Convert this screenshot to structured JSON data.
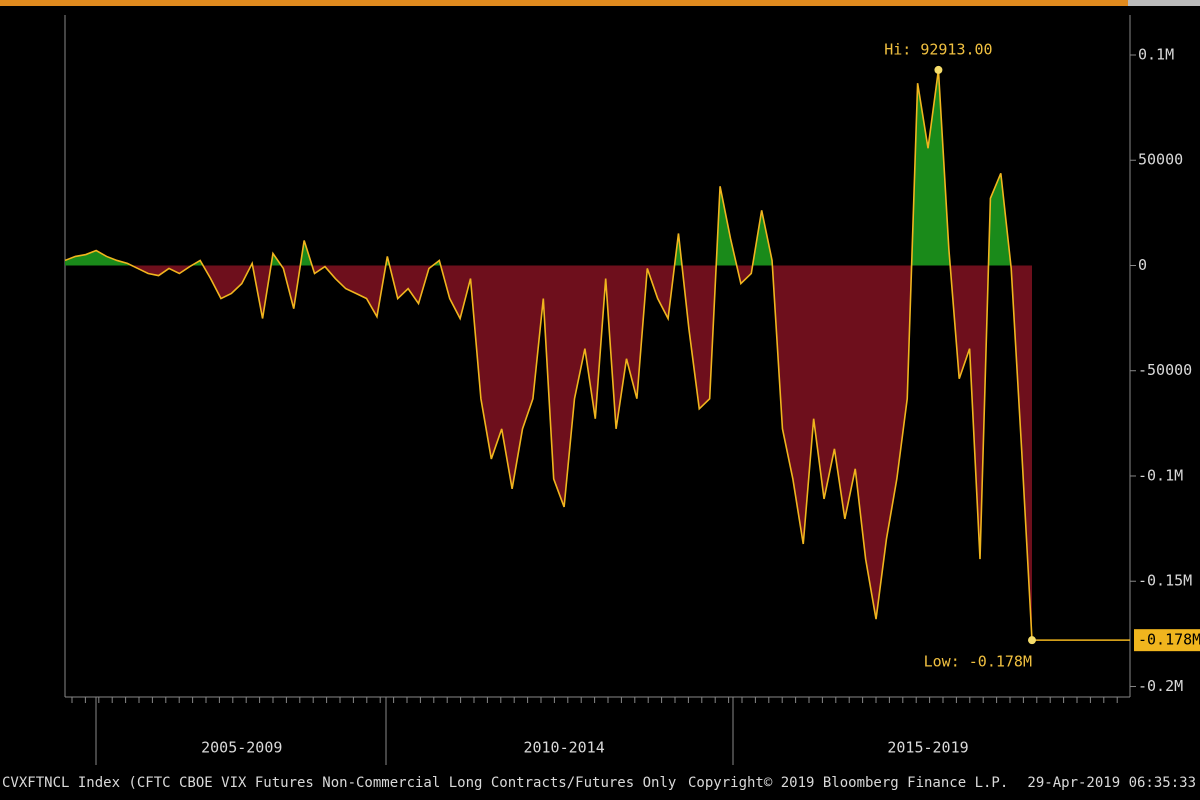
{
  "chart_data": {
    "type": "area",
    "hi_label": "Hi: 92913.00",
    "low_label": "Low: -0.178M",
    "last_value_label": "-0.178M",
    "footer_left": "CVXFTNCL Index (CFTC CBOE VIX Futures Non-Commercial Long Contracts/Futures Only",
    "footer_center": "Copyright© 2019 Bloomberg Finance L.P.",
    "footer_right": "29-Apr-2019 06:35:33",
    "categories": [
      null,
      null,
      null,
      null,
      null,
      null,
      null,
      null,
      null,
      null,
      null,
      null,
      null,
      null,
      null,
      null,
      null,
      "2005-2009",
      null,
      null,
      null,
      null,
      null,
      null,
      null,
      null,
      null,
      null,
      null,
      null,
      null,
      null,
      null,
      null,
      null,
      null,
      null,
      null,
      null,
      null,
      null,
      null,
      null,
      null,
      null,
      null,
      null,
      null,
      "2010-2014",
      null,
      null,
      null,
      null,
      null,
      null,
      null,
      null,
      null,
      null,
      null,
      null,
      null,
      null,
      null,
      null,
      null,
      null,
      null,
      null,
      null,
      null,
      null,
      null,
      null,
      null,
      null,
      null,
      null,
      null,
      null,
      null,
      null,
      null,
      "2015-2019",
      null,
      null,
      null,
      null,
      null,
      null,
      null,
      null,
      null,
      null
    ],
    "series": [
      {
        "name": "CVXFTNCL Index",
        "color": "#f0b51e",
        "values": [
          2400,
          4300,
          5200,
          7100,
          4300,
          2400,
          1000,
          -1400,
          -3800,
          -4800,
          -1400,
          -3800,
          -500,
          2400,
          -6200,
          -15700,
          -13300,
          -8600,
          1000,
          -25200,
          5700,
          -1400,
          -20500,
          11900,
          -3800,
          -500,
          -6200,
          -11000,
          -13300,
          -15700,
          -24300,
          4300,
          -15700,
          -11000,
          -18100,
          -1400,
          2400,
          -15700,
          -25200,
          -6200,
          -63300,
          -91900,
          -77600,
          -106100,
          -77600,
          -63300,
          -15700,
          -101400,
          -114700,
          -63300,
          -39500,
          -72800,
          -6200,
          -77600,
          -44300,
          -63300,
          -1400,
          -15700,
          -25200,
          15200,
          -30000,
          -68100,
          -63300,
          37600,
          12900,
          -8600,
          -3800,
          26200,
          2400,
          -77600,
          -101400,
          -132300,
          -72800,
          -110900,
          -87100,
          -120400,
          -96600,
          -139500,
          -168000,
          -130000,
          -101400,
          -63300,
          86600,
          55700,
          92913,
          8100,
          -53800,
          -39500,
          -139500,
          31900,
          43800,
          -1400,
          -87100,
          -178000
        ]
      }
    ],
    "positive_color": "#1a8a1a",
    "negative_color": "#6e0f1c",
    "ylim": [
      -205000,
      119000
    ],
    "yticks": [
      {
        "value": 100000,
        "label": "0.1M"
      },
      50000,
      0,
      -50000,
      {
        "value": -100000,
        "label": "-0.1M"
      },
      {
        "value": -150000,
        "label": "-0.15M"
      },
      {
        "value": -200000,
        "label": "-0.2M"
      }
    ]
  }
}
